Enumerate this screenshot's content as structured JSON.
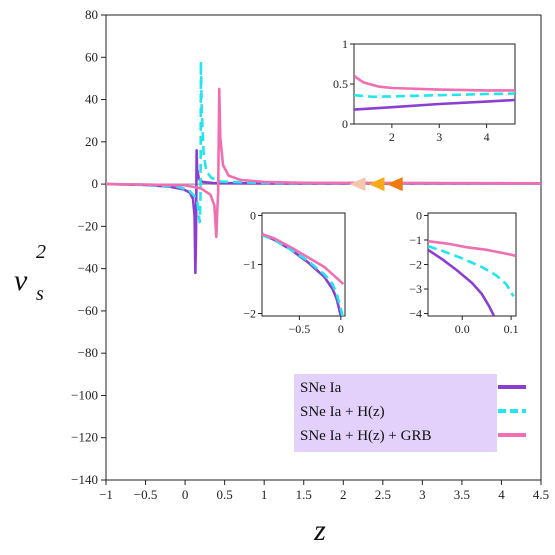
{
  "chart_data": {
    "type": "line",
    "xlabel": "z",
    "ylabel": "v",
    "ylabel_sup": "2",
    "ylabel_sub": "s",
    "xlim": [
      -1,
      4.5
    ],
    "ylim": [
      -140,
      80
    ],
    "x_ticks": [
      -1,
      -0.5,
      0,
      0.5,
      1,
      1.5,
      2,
      2.5,
      3,
      3.5,
      4,
      4.5
    ],
    "y_ticks": [
      80,
      60,
      40,
      20,
      0,
      -20,
      -40,
      -60,
      -80,
      -100,
      -120,
      -140
    ],
    "grid": false,
    "legend_position": "bottom-right",
    "series": [
      {
        "name": "SNe Ia",
        "color": "#8a3fd0",
        "style": "solid",
        "points": [
          [
            -1,
            0
          ],
          [
            -0.5,
            -0.4
          ],
          [
            -0.2,
            -1.2
          ],
          [
            -0.02,
            -2.5
          ],
          [
            0.06,
            -4
          ],
          [
            0.1,
            -7
          ],
          [
            0.12,
            -15
          ],
          [
            0.13,
            -42
          ],
          [
            0.138,
            -25
          ],
          [
            0.146,
            16
          ],
          [
            0.152,
            7
          ],
          [
            0.175,
            2.5
          ],
          [
            0.22,
            1
          ],
          [
            0.35,
            0.5
          ],
          [
            1,
            0.3
          ],
          [
            4.5,
            0.3
          ]
        ]
      },
      {
        "name": "SNe Ia + H(z)",
        "color": "#22e5f0",
        "style": "dashed",
        "points": [
          [
            -1,
            0
          ],
          [
            -0.5,
            -0.3
          ],
          [
            -0.1,
            -1.2
          ],
          [
            0.05,
            -3
          ],
          [
            0.15,
            -7
          ],
          [
            0.185,
            -18
          ],
          [
            0.19,
            -12
          ],
          [
            0.196,
            -3
          ],
          [
            0.2,
            58
          ],
          [
            0.21,
            35
          ],
          [
            0.235,
            14
          ],
          [
            0.27,
            6
          ],
          [
            0.33,
            3
          ],
          [
            0.45,
            1.2
          ],
          [
            1,
            0.5
          ],
          [
            4.5,
            0.35
          ]
        ]
      },
      {
        "name": "SNe Ia + H(z) + GRB",
        "color": "#f06fb2",
        "style": "solid",
        "points": [
          [
            -1,
            0
          ],
          [
            -0.5,
            -0.2
          ],
          [
            0,
            -0.6
          ],
          [
            0.2,
            -2
          ],
          [
            0.32,
            -5
          ],
          [
            0.37,
            -10
          ],
          [
            0.395,
            -25
          ],
          [
            0.405,
            -14
          ],
          [
            0.418,
            -4
          ],
          [
            0.432,
            45
          ],
          [
            0.445,
            22
          ],
          [
            0.48,
            9
          ],
          [
            0.55,
            4
          ],
          [
            0.7,
            2
          ],
          [
            1,
            1
          ],
          [
            1.5,
            0.6
          ],
          [
            4.5,
            0.4
          ]
        ]
      }
    ],
    "markers": [
      {
        "shape": "left-triangle",
        "x": 2.18,
        "y": 0,
        "color": "#f6c7ab"
      },
      {
        "shape": "left-triangle",
        "x": 2.42,
        "y": 0,
        "color": "#f6aa17"
      },
      {
        "shape": "left-triangle",
        "x": 2.65,
        "y": 0,
        "color": "#f07a10"
      }
    ],
    "insets": [
      {
        "xlim": [
          1.2,
          4.6
        ],
        "ylim": [
          0,
          1
        ],
        "x_ticks": [
          2,
          3,
          4
        ],
        "y_ticks": [
          0,
          0.5,
          1
        ],
        "series": [
          {
            "points": [
              [
                1.2,
                0.18
              ],
              [
                2,
                0.21
              ],
              [
                3,
                0.25
              ],
              [
                4,
                0.28
              ],
              [
                4.6,
                0.3
              ]
            ]
          },
          {
            "points": [
              [
                1.2,
                0.36
              ],
              [
                1.6,
                0.34
              ],
              [
                2,
                0.345
              ],
              [
                3,
                0.36
              ],
              [
                4,
                0.375
              ],
              [
                4.6,
                0.38
              ]
            ]
          },
          {
            "points": [
              [
                1.2,
                0.6
              ],
              [
                1.4,
                0.52
              ],
              [
                1.7,
                0.47
              ],
              [
                2,
                0.45
              ],
              [
                3,
                0.43
              ],
              [
                4,
                0.42
              ],
              [
                4.6,
                0.42
              ]
            ]
          }
        ]
      },
      {
        "xlim": [
          -0.95,
          0.05
        ],
        "ylim": [
          -2.05,
          0.05
        ],
        "x_ticks": [
          -0.5,
          0
        ],
        "y_ticks": [
          0,
          -1,
          -2
        ],
        "series": [
          {
            "points": [
              [
                -0.95,
                -0.38
              ],
              [
                -0.8,
                -0.5
              ],
              [
                -0.6,
                -0.7
              ],
              [
                -0.4,
                -0.95
              ],
              [
                -0.2,
                -1.25
              ],
              [
                -0.1,
                -1.5
              ],
              [
                -0.05,
                -1.7
              ],
              [
                0,
                -2.05
              ]
            ]
          },
          {
            "points": [
              [
                -0.95,
                -0.4
              ],
              [
                -0.8,
                -0.5
              ],
              [
                -0.6,
                -0.7
              ],
              [
                -0.4,
                -0.92
              ],
              [
                -0.2,
                -1.2
              ],
              [
                -0.1,
                -1.4
              ],
              [
                -0.05,
                -1.6
              ],
              [
                0,
                -1.9
              ],
              [
                0.02,
                -2.05
              ]
            ]
          },
          {
            "points": [
              [
                -0.95,
                -0.38
              ],
              [
                -0.8,
                -0.47
              ],
              [
                -0.6,
                -0.65
              ],
              [
                -0.4,
                -0.85
              ],
              [
                -0.2,
                -1.05
              ],
              [
                -0.1,
                -1.2
              ],
              [
                0,
                -1.35
              ],
              [
                0.03,
                -1.4
              ]
            ]
          }
        ]
      },
      {
        "xlim": [
          -0.07,
          0.11
        ],
        "ylim": [
          -4.1,
          0.1
        ],
        "x_ticks": [
          0,
          0.1
        ],
        "y_ticks": [
          0,
          -1,
          -2,
          -3,
          -4
        ],
        "tick_labels_x": [
          "0.0",
          "0.1"
        ],
        "series": [
          {
            "points": [
              [
                -0.07,
                -1.4
              ],
              [
                -0.04,
                -1.8
              ],
              [
                -0.01,
                -2.25
              ],
              [
                0.02,
                -2.75
              ],
              [
                0.04,
                -3.2
              ],
              [
                0.055,
                -3.7
              ],
              [
                0.065,
                -4.1
              ]
            ]
          },
          {
            "points": [
              [
                -0.07,
                -1.25
              ],
              [
                -0.04,
                -1.45
              ],
              [
                0,
                -1.75
              ],
              [
                0.04,
                -2.1
              ],
              [
                0.07,
                -2.45
              ],
              [
                0.09,
                -2.8
              ],
              [
                0.105,
                -3.3
              ]
            ]
          },
          {
            "points": [
              [
                -0.07,
                -1.05
              ],
              [
                -0.03,
                -1.15
              ],
              [
                0.01,
                -1.3
              ],
              [
                0.05,
                -1.4
              ],
              [
                0.1,
                -1.6
              ],
              [
                0.11,
                -1.65
              ]
            ]
          }
        ]
      }
    ],
    "legend": {
      "entries": [
        "SNe Ia",
        "SNe Ia + H(z)",
        "SNe Ia + H(z) + GRB"
      ],
      "background": "#e3d0fb"
    }
  }
}
